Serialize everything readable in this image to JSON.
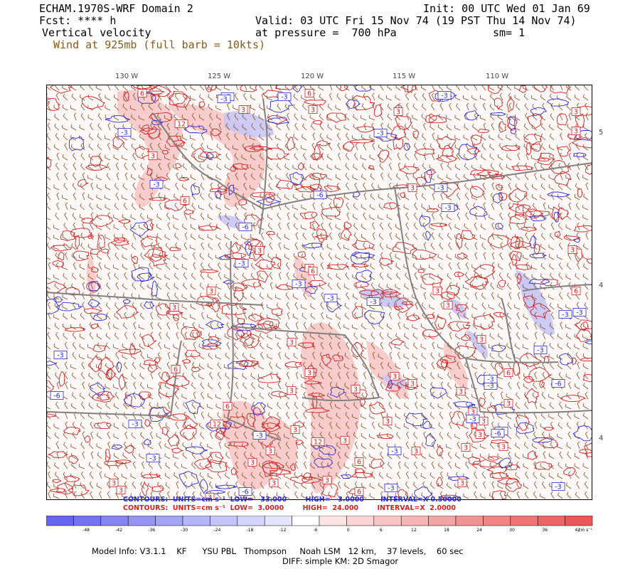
{
  "header": {
    "model_title": "ECHAM.1970S-WRF Domain 2",
    "init": "Init: 00 UTC Wed 01 Jan 69",
    "fcst": "Fcst: **** h",
    "valid": "Valid: 03 UTC Fri 15 Nov 74 (19 PST Thu 14 Nov 74)",
    "field": "Vertical velocity",
    "pressure": "at pressure =  700 hPa",
    "smooth": "sm= 1",
    "wind": "Wind at 925mb (full barb = 10kts)"
  },
  "map": {
    "lon_labels": [
      "130 W",
      "125 W",
      "120 W",
      "115 W",
      "110 W"
    ],
    "lat_labels": [
      "5",
      "4",
      "4"
    ],
    "contour_labels_pos": [
      "6",
      "6",
      "12",
      "6",
      "6",
      "3",
      "3",
      "3",
      "3",
      "3",
      "3",
      "3",
      "3",
      "3",
      "3",
      "3",
      "3",
      "6",
      "3",
      "3",
      "3",
      "6",
      "6",
      "3",
      "12",
      "3",
      "6",
      "3",
      "3",
      "3",
      "3",
      "3",
      "3",
      "3",
      "6",
      "3",
      "3",
      "3",
      "3",
      "3",
      "6",
      "3",
      "3",
      "3",
      "3",
      "3",
      "12",
      "3",
      "3",
      "3",
      "6",
      "3",
      "3",
      "3",
      "3",
      "3",
      "3"
    ],
    "contour_labels_neg": [
      "-3",
      "-3",
      "-3",
      "-3",
      "-3",
      "-3",
      "-6",
      "-3",
      "-3",
      "-6",
      "-3",
      "-3",
      "-3",
      "-3",
      "-3",
      "-6",
      "-3",
      "-6",
      "-3",
      "-3",
      "-3",
      "-3",
      "-3",
      "-3",
      "-6",
      "-3",
      "-3",
      "-3",
      "-3",
      "-3",
      "-6",
      "-3",
      "-3"
    ],
    "colors": {
      "positive": "#d42020",
      "negative": "#2a2ad8",
      "borders": "#808080",
      "barbs": "#8a4a1a"
    }
  },
  "contour_info": {
    "neg": "CONTOURS:  UNITS=cm s⁻¹  LOW=  -33.000        HIGH=  -3.0000       INTERVAL=X 0.50000",
    "pos": "CONTOURS:  UNITS=cm s⁻¹  LOW=  3.0000        HIGH=  24.000        INTERVAL=X  2.0000"
  },
  "colorbar": {
    "ticks": [
      "-48",
      "-42",
      "-36",
      "-30",
      "-24",
      "-18",
      "-12",
      "-6",
      "0",
      "6",
      "12",
      "18",
      "24",
      "30",
      "36",
      "42"
    ],
    "units": "cm s⁻¹",
    "colors": [
      "#6666ee",
      "#7474f0",
      "#8484f2",
      "#9494f4",
      "#a4a4f6",
      "#b4b4f8",
      "#c4c4fa",
      "#d4d4fc",
      "#e4e4fe",
      "#ffffff",
      "#fde4e4",
      "#fbd4d4",
      "#f9c4c4",
      "#f7b4b4",
      "#f5a4a4",
      "#f39494",
      "#f18484",
      "#ef7474",
      "#ed6666",
      "#ea5858"
    ]
  },
  "footer": {
    "line1": "Model Info: V3.1.1    KF      YSU PBL   Thompson     Noah LSM   12 km,    37 levels,    60 sec",
    "line2": "DIFF: simple KM: 2D Smagor"
  }
}
